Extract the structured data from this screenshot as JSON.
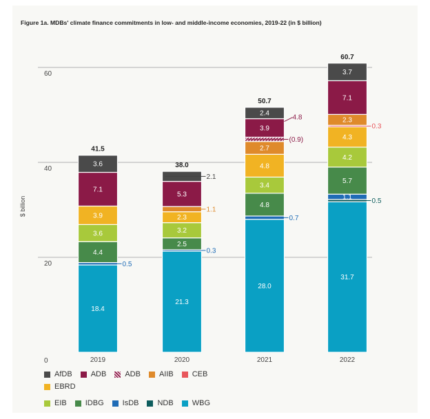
{
  "chart_data": {
    "type": "stacked-bar",
    "title": "Figure 1a. MDBs' climate finance commitments in low- and middle-income economies, 2019-22 (in $ billion)",
    "ylabel": "$ billion",
    "ylim": [
      0,
      60
    ],
    "yticks": [
      "0",
      "20",
      "40",
      "60"
    ],
    "grid": true,
    "legend_position": "bottom",
    "categories": [
      "2019",
      "2020",
      "2021",
      "2022"
    ],
    "totals": [
      "41.5",
      "38.0",
      "50.7",
      "60.7"
    ],
    "legend": [
      {
        "name": "AfDB",
        "color": "#4a4a4a"
      },
      {
        "name": "ADB",
        "color": "#8b1a47"
      },
      {
        "name": "ADB",
        "color": "#8b1a47",
        "hatched": true
      },
      {
        "name": "AIIB",
        "color": "#df8a2b"
      },
      {
        "name": "CEB",
        "color": "#e8565b"
      },
      {
        "name": "EBRD",
        "color": "#f1b323"
      },
      {
        "name": "EIB",
        "color": "#a8c93b"
      },
      {
        "name": "IDBG",
        "color": "#478a4a"
      },
      {
        "name": "IsDB",
        "color": "#1f6cb6"
      },
      {
        "name": "NDB",
        "color": "#0e5d5d"
      },
      {
        "name": "WBG",
        "color": "#0aa0c4"
      }
    ],
    "bars": [
      {
        "year": "2019",
        "segments": [
          {
            "bank": "WBG",
            "value": 18.4
          },
          {
            "bank": "IsDB",
            "value": 0.5,
            "label_outside": true
          },
          {
            "bank": "IDBG",
            "value": 4.4
          },
          {
            "bank": "EIB",
            "value": 3.6
          },
          {
            "bank": "EBRD",
            "value": 3.9
          },
          {
            "bank": "ADB",
            "value": 7.1
          },
          {
            "bank": "AfDB",
            "value": 3.6
          }
        ]
      },
      {
        "year": "2020",
        "segments": [
          {
            "bank": "WBG",
            "value": 21.3
          },
          {
            "bank": "IsDB",
            "value": 0.3,
            "label_outside": true
          },
          {
            "bank": "IDBG",
            "value": 2.5
          },
          {
            "bank": "EIB",
            "value": 3.2
          },
          {
            "bank": "EBRD",
            "value": 2.3
          },
          {
            "bank": "AIIB",
            "value": 1.1,
            "label_outside": true
          },
          {
            "bank": "ADB",
            "value": 5.3
          },
          {
            "bank": "AfDB",
            "value": 2.1,
            "label_outside": true
          }
        ]
      },
      {
        "year": "2021",
        "segments": [
          {
            "bank": "WBG",
            "value": 28.0
          },
          {
            "bank": "IsDB",
            "value": 0.7,
            "label_outside": true
          },
          {
            "bank": "IDBG",
            "value": 4.8
          },
          {
            "bank": "EIB",
            "value": 3.4
          },
          {
            "bank": "EBRD",
            "value": 4.8
          },
          {
            "bank": "AIIB",
            "value": 2.7
          },
          {
            "bank": "ADB",
            "value": 0.9,
            "hatched": true,
            "label": "(0.9)",
            "label_outside": true
          },
          {
            "bank": "ADB",
            "value": 3.9,
            "annotation": "4.8"
          },
          {
            "bank": "AfDB",
            "value": 2.4
          }
        ]
      },
      {
        "year": "2022",
        "segments": [
          {
            "bank": "WBG",
            "value": 31.7
          },
          {
            "bank": "NDB",
            "value": 0.5,
            "label_outside": true
          },
          {
            "bank": "IsDB",
            "value": 1.1
          },
          {
            "bank": "IDBG",
            "value": 5.7
          },
          {
            "bank": "EIB",
            "value": 4.2
          },
          {
            "bank": "EBRD",
            "value": 4.3
          },
          {
            "bank": "CEB",
            "value": 0.3,
            "label_outside": true
          },
          {
            "bank": "AIIB",
            "value": 2.3
          },
          {
            "bank": "ADB",
            "value": 7.1
          },
          {
            "bank": "AfDB",
            "value": 3.7
          }
        ]
      }
    ]
  }
}
